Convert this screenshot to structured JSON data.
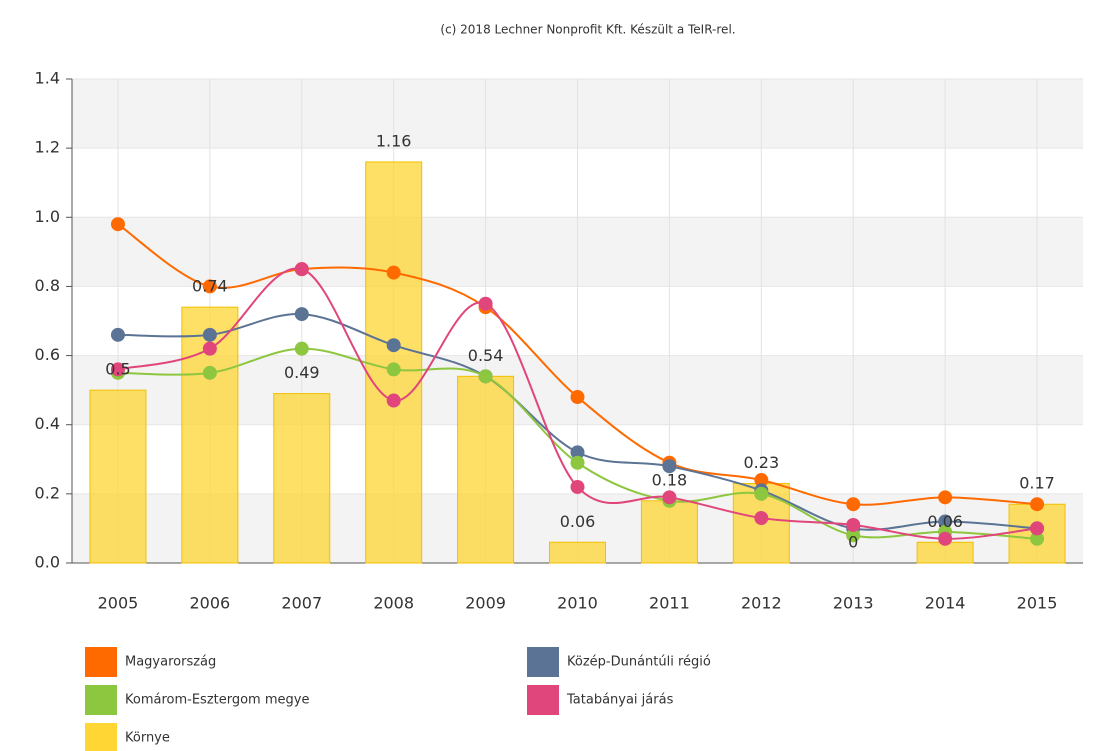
{
  "chart_data": {
    "type": "combo",
    "title": "(c) 2018 Lechner Nonprofit Kft. Készült a TeIR-rel.",
    "categories": [
      "2005",
      "2006",
      "2007",
      "2008",
      "2009",
      "2010",
      "2011",
      "2012",
      "2013",
      "2014",
      "2015"
    ],
    "ylim": [
      0,
      1.4
    ],
    "yticks": [
      {
        "value": 0,
        "label": "0.0"
      },
      0.2,
      0.4,
      0.6,
      0.8,
      {
        "value": 1,
        "label": "1.0"
      },
      1.2,
      1.4
    ],
    "grid": true,
    "series": [
      {
        "name": "Magyarország",
        "type": "line",
        "color": "#ff6a00",
        "values": [
          0.98,
          0.8,
          0.85,
          0.84,
          0.74,
          0.48,
          0.29,
          0.24,
          0.17,
          0.19,
          0.17
        ]
      },
      {
        "name": "Közép-Dunántúli régió",
        "type": "line",
        "color": "#5b7394",
        "values": [
          0.66,
          0.66,
          0.72,
          0.63,
          0.54,
          0.32,
          0.28,
          0.21,
          0.1,
          0.12,
          0.1
        ]
      },
      {
        "name": "Komárom-Esztergom megye",
        "type": "line",
        "color": "#8dc63f",
        "values": [
          0.55,
          0.55,
          0.62,
          0.56,
          0.54,
          0.29,
          0.18,
          0.2,
          0.08,
          0.09,
          0.07
        ]
      },
      {
        "name": "Tatabányai járás",
        "type": "line",
        "color": "#e0457b",
        "values": [
          0.56,
          0.62,
          0.85,
          0.47,
          0.75,
          0.22,
          0.19,
          0.13,
          0.11,
          0.07,
          0.1
        ]
      },
      {
        "name": "Környe",
        "type": "bar",
        "color": "#ffd633",
        "values": [
          0.5,
          0.74,
          0.49,
          1.16,
          0.54,
          0.06,
          0.18,
          0.23,
          0,
          0.06,
          0.17
        ]
      }
    ]
  }
}
